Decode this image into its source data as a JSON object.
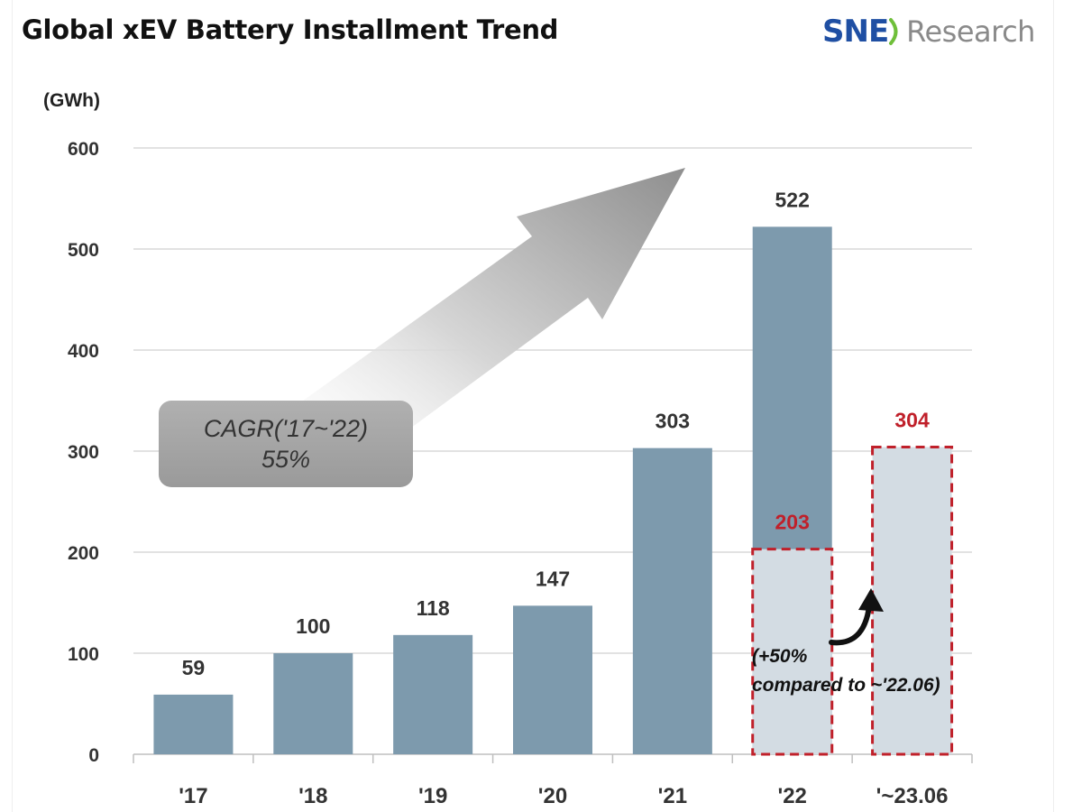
{
  "title": "Global xEV Battery Installment Trend",
  "logo": {
    "part1": "SNE",
    "part2": "Research"
  },
  "unit": "(GWh)",
  "cagr": {
    "line1": "CAGR('17~'22)",
    "line2": "55%"
  },
  "note": {
    "line1": "(+50%",
    "line2": "compared to ~'22.06)"
  },
  "colors": {
    "bar": "#7d9aad",
    "bar_light": "#d3dce3",
    "red": "#c0202a"
  },
  "chart_data": {
    "type": "bar",
    "categories": [
      "'17",
      "'18",
      "'19",
      "'20",
      "'21",
      "'22",
      "'~23.06"
    ],
    "series": [
      {
        "values": [
          59,
          100,
          118,
          147,
          303,
          522,
          null
        ]
      },
      {
        "values": [
          null,
          null,
          null,
          null,
          null,
          203,
          304
        ]
      }
    ],
    "data_labels": [
      "59",
      "100",
      "118",
      "147",
      "303",
      "522",
      "304"
    ],
    "highlight_label": "203",
    "ylabel": "(GWh)",
    "ylim": [
      0,
      600
    ],
    "yticks": [
      0,
      100,
      200,
      300,
      400,
      500,
      600
    ],
    "grid": true,
    "legend": false
  }
}
